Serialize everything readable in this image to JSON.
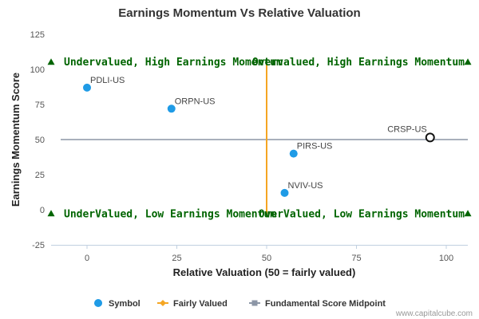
{
  "chart_data": {
    "type": "scatter",
    "title": "Earnings Momentum Vs Relative Valuation",
    "xlabel": "Relative Valuation (50 = fairly valued)",
    "ylabel": "Earnings Momentum Score",
    "xlim": [
      -10,
      106
    ],
    "ylim": [
      -25,
      125
    ],
    "x_ticks": [
      0,
      25,
      50,
      75,
      100
    ],
    "y_ticks": [
      -25,
      0,
      25,
      50,
      75,
      100,
      125
    ],
    "grid": false,
    "legend_position": "bottom",
    "points": [
      {
        "label": "PDLI-US",
        "x": 0,
        "y": 87,
        "style": "filled"
      },
      {
        "label": "ORPN-US",
        "x": 23.5,
        "y": 72,
        "style": "filled"
      },
      {
        "label": "CRSP-US",
        "x": 95.5,
        "y": 51.5,
        "style": "highlight"
      },
      {
        "label": "PIRS-US",
        "x": 57.5,
        "y": 40,
        "style": "filled"
      },
      {
        "label": "NVIV-US",
        "x": 55,
        "y": 12,
        "style": "filled"
      }
    ],
    "fairly_valued_x": 50,
    "midpoint_y": 50,
    "quadrant_labels": {
      "top_left": "Undervalued, High Earnings Momentum",
      "top_right": "Overvalued, High Earnings Momentum",
      "bottom_left": "UnderValued, Low Earnings Momentum",
      "bottom_right": "OverValued, Low Earnings Momentum"
    },
    "markers": [
      {
        "x": -10,
        "y": 105
      },
      {
        "x": 106,
        "y": 105
      },
      {
        "x": -10,
        "y": -3
      },
      {
        "x": 106,
        "y": -3
      }
    ],
    "legend": [
      {
        "label": "Symbol",
        "kind": "dot",
        "color": "#1f9be6"
      },
      {
        "label": "Fairly Valued",
        "kind": "diamond-line",
        "color": "#f5a623"
      },
      {
        "label": "Fundamental Score Midpoint",
        "kind": "square-line",
        "color": "#8c96a6"
      }
    ],
    "colors": {
      "points": "#1f9be6",
      "fairly_valued": "#f5a623",
      "midpoint": "#8c96a6",
      "quadrant_text": "#006400",
      "markers": "#006400"
    }
  },
  "credit": "www.capitalcube.com"
}
